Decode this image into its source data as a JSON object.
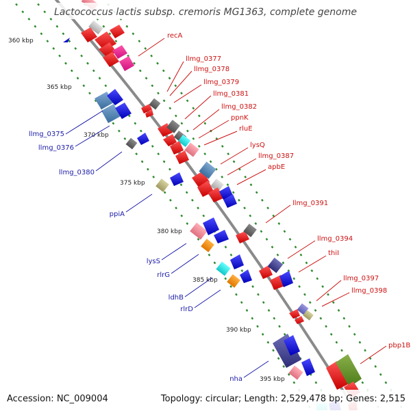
{
  "title": "Lactococcus lactis subsp. cremoris MG1363, complete genome",
  "accession": "Accession: NC_009004",
  "topology": "Topology: circular; Length: 2,529,478 bp; Genes: 2,515",
  "colors": {
    "backbone": "#888888",
    "forward_label": "#cc1111",
    "reverse_label": "#1a1aa8",
    "dash": "#2f8a2f"
  },
  "ticks": [
    "360 kbp",
    "365 kbp",
    "370 kbp",
    "375 kbp",
    "380 kbp",
    "385 kbp",
    "390 kbp",
    "395 kbp"
  ],
  "forward_labels": [
    "recA",
    "llmg_0377",
    "llmg_0378",
    "llmg_0379",
    "llmg_0381",
    "llmg_0382",
    "ppnK",
    "rluE",
    "lysQ",
    "llmg_0387",
    "apbE",
    "llmg_0391",
    "llmg_0394",
    "thiI",
    "llmg_0397",
    "llmg_0398",
    "pbp1B"
  ],
  "reverse_labels": [
    "llmg_0375",
    "llmg_0376",
    "llmg_0380",
    "ppiA",
    "lysS",
    "rlrG",
    "ldhB",
    "rlrD",
    "nha"
  ]
}
